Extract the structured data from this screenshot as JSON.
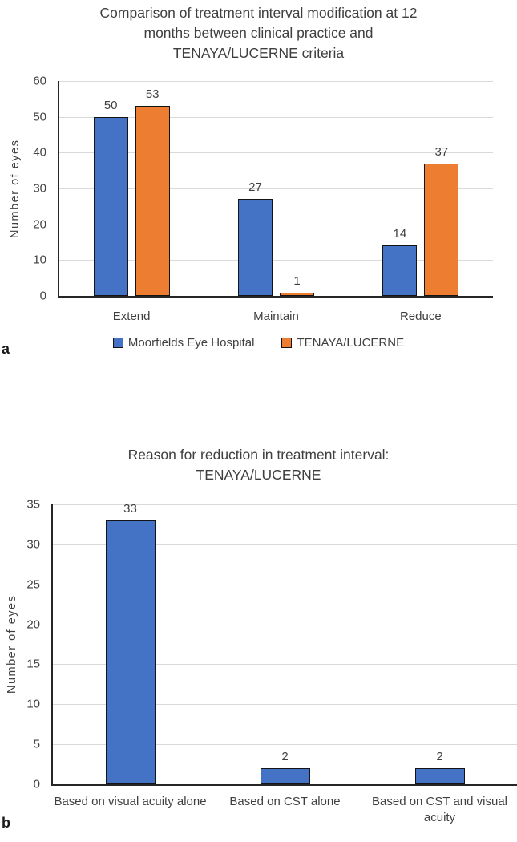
{
  "panels": {
    "a": "a",
    "b": "b"
  },
  "style": {
    "background": "#ffffff",
    "grid_color": "#d9d9d9",
    "axis_color": "#262626",
    "text_color": "#404040",
    "bar_blue": "#4472C4",
    "bar_orange": "#ED7D31",
    "bar_outline": "#141414"
  },
  "chart_data": [
    {
      "type": "bar",
      "title_lines": [
        "Comparison of treatment interval modification at 12",
        "months between clinical practice and",
        "TENAYA/LUCERNE criteria"
      ],
      "ylabel": "Number of eyes",
      "xlabel": "",
      "categories": [
        "Extend",
        "Maintain",
        "Reduce"
      ],
      "series": [
        {
          "name": "Moorfields Eye Hospital",
          "color": "#4472C4",
          "values": [
            50,
            27,
            14
          ]
        },
        {
          "name": "TENAYA/LUCERNE",
          "color": "#ED7D31",
          "values": [
            53,
            1,
            37
          ]
        }
      ],
      "ylim": [
        0,
        60
      ],
      "ytick_step": 10,
      "yticks": [
        0,
        10,
        20,
        30,
        40,
        50,
        60
      ],
      "grid": true,
      "value_labels": true,
      "legend_position": "bottom",
      "bar_outline_color": "#141414"
    },
    {
      "type": "bar",
      "title_lines": [
        "Reason for reduction in treatment interval:",
        "TENAYA/LUCERNE"
      ],
      "ylabel": "Number of eyes",
      "xlabel": "",
      "categories": [
        "Based on visual acuity alone",
        "Based on CST alone",
        "Based on CST and visual acuity"
      ],
      "series": [
        {
          "color": "#4472C4",
          "values": [
            33,
            2,
            2
          ]
        }
      ],
      "ylim": [
        0,
        35
      ],
      "ytick_step": 5,
      "yticks": [
        0,
        5,
        10,
        15,
        20,
        25,
        30,
        35
      ],
      "grid": true,
      "value_labels": true,
      "legend_position": "none",
      "bar_outline_color": "#141414"
    }
  ]
}
